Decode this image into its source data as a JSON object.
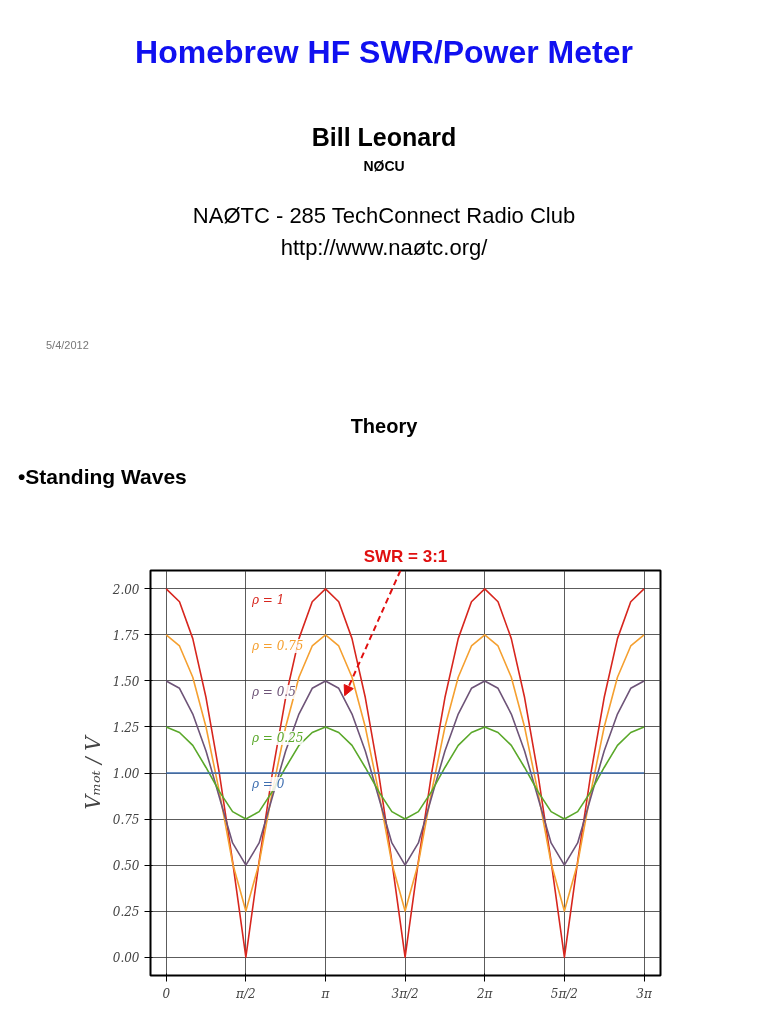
{
  "chart_data": {
    "type": "line",
    "title": "Homebrew HF SWR/Power Meter",
    "annotations": [
      "Bill Leonard",
      "NØCU",
      "NAØTC - 285 TechConnect Radio Club",
      "http://www.naøtc.org/",
      "5/4/2012",
      "Theory",
      "•Standing Waves",
      {
        "text": "SWR = 3:1",
        "x": 3.52,
        "y": 1.42
      }
    ],
    "ylabel": "Vₘₒₜ / V",
    "x": [
      0,
      0.262,
      0.524,
      0.785,
      1.047,
      1.309,
      1.571,
      1.833,
      2.094,
      2.356,
      2.618,
      2.88,
      3.142,
      3.403,
      3.665,
      3.927,
      4.189,
      4.451,
      4.712,
      4.974,
      5.236,
      5.498,
      5.76,
      6.021,
      6.283,
      6.545,
      6.807,
      7.069,
      7.33,
      7.592,
      7.854,
      8.116,
      8.378,
      8.639,
      8.901,
      9.163,
      9.425
    ],
    "series": [
      {
        "name": "ρ = 1",
        "color": "#d7261e",
        "values": [
          2,
          1.93,
          1.73,
          1.41,
          1,
          0.52,
          0,
          0.52,
          1,
          1.41,
          1.73,
          1.93,
          2,
          1.93,
          1.73,
          1.41,
          1,
          0.52,
          0,
          0.52,
          1,
          1.41,
          1.73,
          1.93,
          2,
          1.93,
          1.73,
          1.41,
          1,
          0.52,
          0,
          0.52,
          1,
          1.41,
          1.73,
          1.93,
          2
        ]
      },
      {
        "name": "ρ = 0.75",
        "color": "#f5a030",
        "values": [
          1.75,
          1.69,
          1.52,
          1.25,
          0.9,
          0.51,
          0.25,
          0.51,
          0.9,
          1.25,
          1.52,
          1.69,
          1.75,
          1.69,
          1.52,
          1.25,
          0.9,
          0.51,
          0.25,
          0.51,
          0.9,
          1.25,
          1.52,
          1.69,
          1.75,
          1.69,
          1.52,
          1.25,
          0.9,
          0.51,
          0.25,
          0.51,
          0.9,
          1.25,
          1.52,
          1.69,
          1.75
        ]
      },
      {
        "name": "ρ = 0.5",
        "color": "#6e5478",
        "values": [
          1.5,
          1.46,
          1.32,
          1.12,
          0.87,
          0.62,
          0.5,
          0.62,
          0.87,
          1.12,
          1.32,
          1.46,
          1.5,
          1.46,
          1.32,
          1.12,
          0.87,
          0.62,
          0.5,
          0.62,
          0.87,
          1.12,
          1.32,
          1.46,
          1.5,
          1.46,
          1.32,
          1.12,
          0.87,
          0.62,
          0.5,
          0.62,
          0.87,
          1.12,
          1.32,
          1.46,
          1.5
        ]
      },
      {
        "name": "ρ = 0.25",
        "color": "#5aa82a",
        "values": [
          1.25,
          1.22,
          1.15,
          1.03,
          0.9,
          0.79,
          0.75,
          0.79,
          0.9,
          1.03,
          1.15,
          1.22,
          1.25,
          1.22,
          1.15,
          1.03,
          0.9,
          0.79,
          0.75,
          0.79,
          0.9,
          1.03,
          1.15,
          1.22,
          1.25,
          1.22,
          1.15,
          1.03,
          0.9,
          0.79,
          0.75,
          0.79,
          0.9,
          1.03,
          1.15,
          1.22,
          1.25
        ]
      },
      {
        "name": "ρ = 0",
        "color": "#3f6fb0",
        "values": [
          1,
          1,
          1,
          1,
          1,
          1,
          1,
          1,
          1,
          1,
          1,
          1,
          1,
          1,
          1,
          1,
          1,
          1,
          1,
          1,
          1,
          1,
          1,
          1,
          1,
          1,
          1,
          1,
          1,
          1,
          1,
          1,
          1,
          1,
          1,
          1,
          1
        ]
      }
    ],
    "xlim": [
      -0.31,
      9.75
    ],
    "ylim": [
      -0.1,
      2.1
    ],
    "xticks": [
      0,
      {
        "value": 1.5708,
        "label": "π/2"
      },
      {
        "value": 3.1416,
        "label": "π"
      },
      {
        "value": 4.7124,
        "label": "3π/2"
      },
      {
        "value": 6.2832,
        "label": "2π"
      },
      {
        "value": 7.854,
        "label": "5π/2"
      },
      {
        "value": 9.4248,
        "label": "3π"
      }
    ],
    "yticks": [
      {
        "value": 0,
        "label": "0.00"
      },
      0.25,
      {
        "value": 0.5,
        "label": "0.50"
      },
      0.75,
      {
        "value": 1,
        "label": "1.00"
      },
      1.25,
      {
        "value": 1.5,
        "label": "1.50"
      },
      1.75,
      {
        "value": 2,
        "label": "2.00"
      }
    ],
    "grid": true,
    "marker": "none",
    "line_style": "solid"
  }
}
